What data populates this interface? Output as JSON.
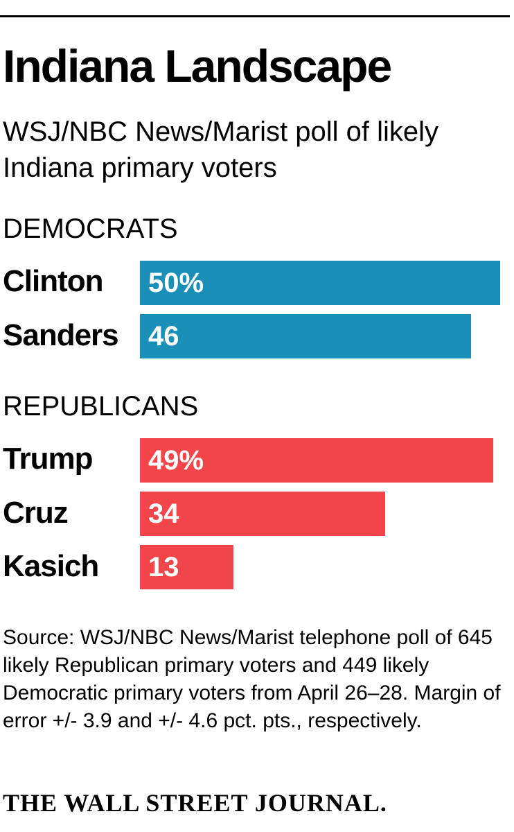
{
  "chart_data": {
    "type": "bar",
    "title": "Indiana Landscape",
    "subtitle": "WSJ/NBC News/Marist poll of likely Indiana primary voters",
    "xlabel": "",
    "ylabel": "",
    "xlim": [
      0,
      50
    ],
    "groups": [
      {
        "label": "DEMOCRATS",
        "color": "#1a8fb8",
        "bars": [
          {
            "name": "Clinton",
            "value": 50,
            "label": "50%"
          },
          {
            "name": "Sanders",
            "value": 46,
            "label": "46"
          }
        ]
      },
      {
        "label": "REPUBLICANS",
        "color": "#f2454a",
        "bars": [
          {
            "name": "Trump",
            "value": 49,
            "label": "49%"
          },
          {
            "name": "Cruz",
            "value": 34,
            "label": "34"
          },
          {
            "name": "Kasich",
            "value": 13,
            "label": "13"
          }
        ]
      }
    ]
  },
  "source": "Source: WSJ/NBC News/Marist telephone poll of 645 likely Republican primary voters and 449 likely Democratic primary voters from April 26–28. Margin of error +/- 3.9 and +/- 4.6 pct. pts., respectively.",
  "brand": "THE WALL STREET JOURNAL."
}
